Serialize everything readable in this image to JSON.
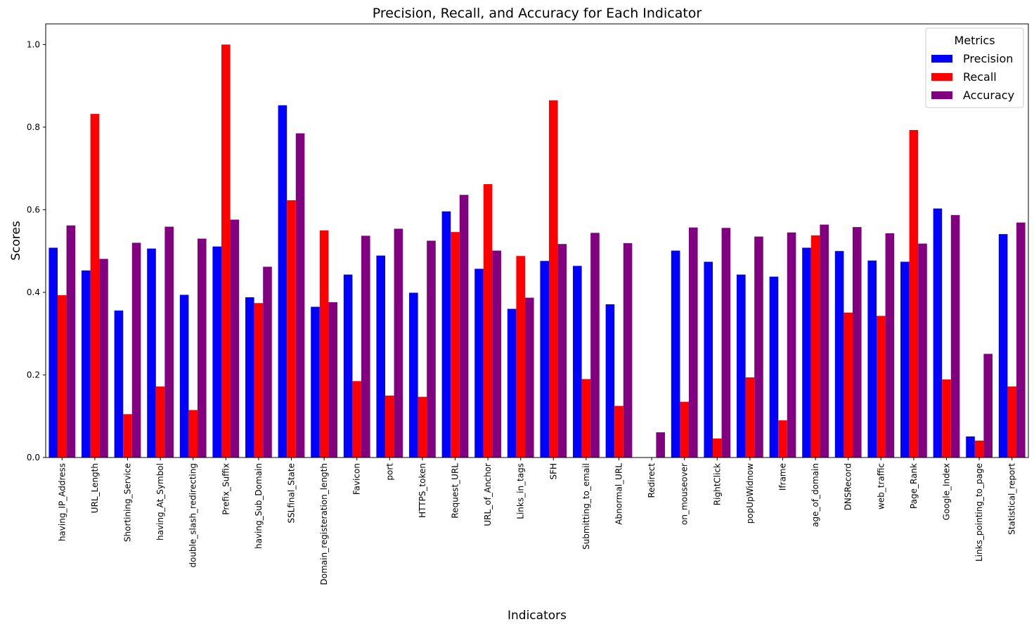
{
  "chart_data": {
    "type": "bar",
    "title": "Precision, Recall, and Accuracy for Each Indicator",
    "xlabel": "Indicators",
    "ylabel": "Scores",
    "ylim": [
      0,
      1.05
    ],
    "yticks": [
      "0.0",
      "0.2",
      "0.4",
      "0.6",
      "0.8",
      "1.0"
    ],
    "grid": false,
    "legend": {
      "title": "Metrics",
      "position": "top-right"
    },
    "categories": [
      "having_IP_Address",
      "URL_Length",
      "Shortining_Service",
      "having_At_Symbol",
      "double_slash_redirecting",
      "Prefix_Suffix",
      "having_Sub_Domain",
      "SSLfinal_State",
      "Domain_registeration_length",
      "Favicon",
      "port",
      "HTTPS_token",
      "Request_URL",
      "URL_of_Anchor",
      "Links_in_tags",
      "SFH",
      "Submitting_to_email",
      "Abnormal_URL",
      "Redirect",
      "on_mouseover",
      "RightClick",
      "popUpWidnow",
      "Iframe",
      "age_of_domain",
      "DNSRecord",
      "web_traffic",
      "Page_Rank",
      "Google_Index",
      "Links_pointing_to_page",
      "Statistical_report"
    ],
    "series": [
      {
        "name": "Precision",
        "color": "#0000ff",
        "values": [
          0.508,
          0.453,
          0.356,
          0.506,
          0.394,
          0.511,
          0.388,
          0.853,
          0.365,
          0.443,
          0.489,
          0.399,
          0.596,
          0.457,
          0.36,
          0.476,
          0.464,
          0.371,
          0.0,
          0.501,
          0.474,
          0.443,
          0.438,
          0.508,
          0.5,
          0.477,
          0.474,
          0.603,
          0.051,
          0.541
        ]
      },
      {
        "name": "Recall",
        "color": "#ff0000",
        "values": [
          0.393,
          0.832,
          0.105,
          0.172,
          0.115,
          1.0,
          0.374,
          0.623,
          0.55,
          0.185,
          0.15,
          0.147,
          0.546,
          0.662,
          0.488,
          0.865,
          0.19,
          0.125,
          0.0,
          0.135,
          0.046,
          0.194,
          0.09,
          0.538,
          0.351,
          0.343,
          0.793,
          0.189,
          0.041,
          0.172
        ]
      },
      {
        "name": "Accuracy",
        "color": "#800080",
        "values": [
          0.562,
          0.481,
          0.52,
          0.559,
          0.53,
          0.576,
          0.462,
          0.785,
          0.376,
          0.537,
          0.554,
          0.525,
          0.636,
          0.501,
          0.387,
          0.517,
          0.544,
          0.519,
          0.061,
          0.557,
          0.556,
          0.535,
          0.545,
          0.564,
          0.558,
          0.543,
          0.518,
          0.587,
          0.251,
          0.569
        ]
      }
    ]
  }
}
